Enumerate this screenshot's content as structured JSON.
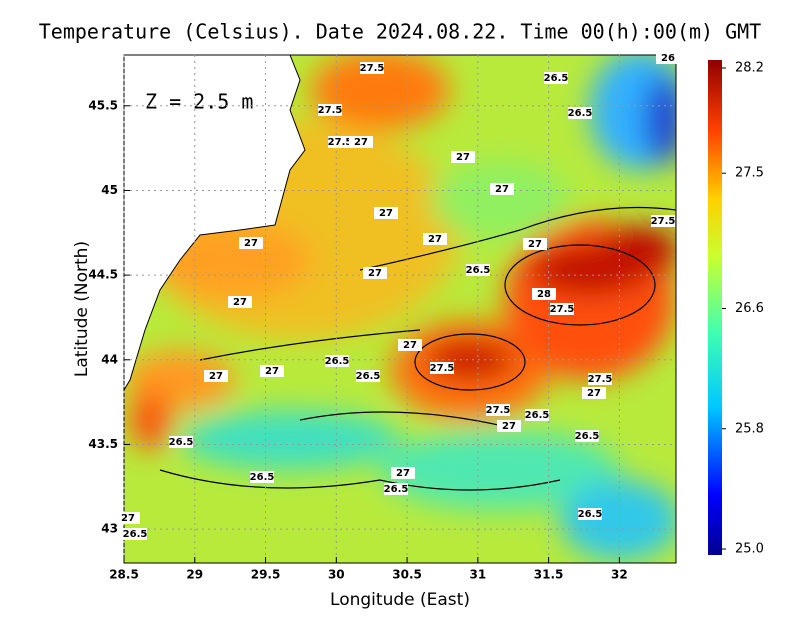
{
  "chart_data": {
    "type": "heatmap-map",
    "title": "Temperature (Celsius). Date 2024.08.22. Time 00(h):00(m) GMT",
    "annotation": "Z = 2.5 m",
    "x_label": "Longitude (East)",
    "y_label": "Latitude (North)",
    "xlim": [
      28.5,
      32.4
    ],
    "xticks": [
      28.5,
      29,
      29.5,
      30,
      30.5,
      31,
      31.5,
      32
    ],
    "ylim": [
      42.8,
      45.8
    ],
    "yticks": [
      43,
      43.5,
      44,
      44.5,
      45,
      45.5
    ],
    "grid": true,
    "colorbar": {
      "lim": [
        25.0,
        28.2
      ],
      "ticks": [
        {
          "value": 28.2,
          "label": "28.2"
        },
        27.5,
        26.6,
        25.8,
        {
          "value": 25.0,
          "label": "25.0"
        }
      ]
    },
    "contour_labels": [
      27.5,
      26.5,
      26.5,
      27.5,
      27.5,
      27,
      27,
      27,
      27,
      27.5,
      27,
      27,
      27,
      26.5,
      27,
      28,
      27.5,
      27,
      27,
      26.5,
      27.5,
      26.5,
      27,
      27,
      27.5,
      27,
      27.5,
      26.5,
      27,
      26.5,
      26.5,
      26.5,
      27,
      26.5,
      26.5,
      27,
      26.5,
      26
    ]
  }
}
